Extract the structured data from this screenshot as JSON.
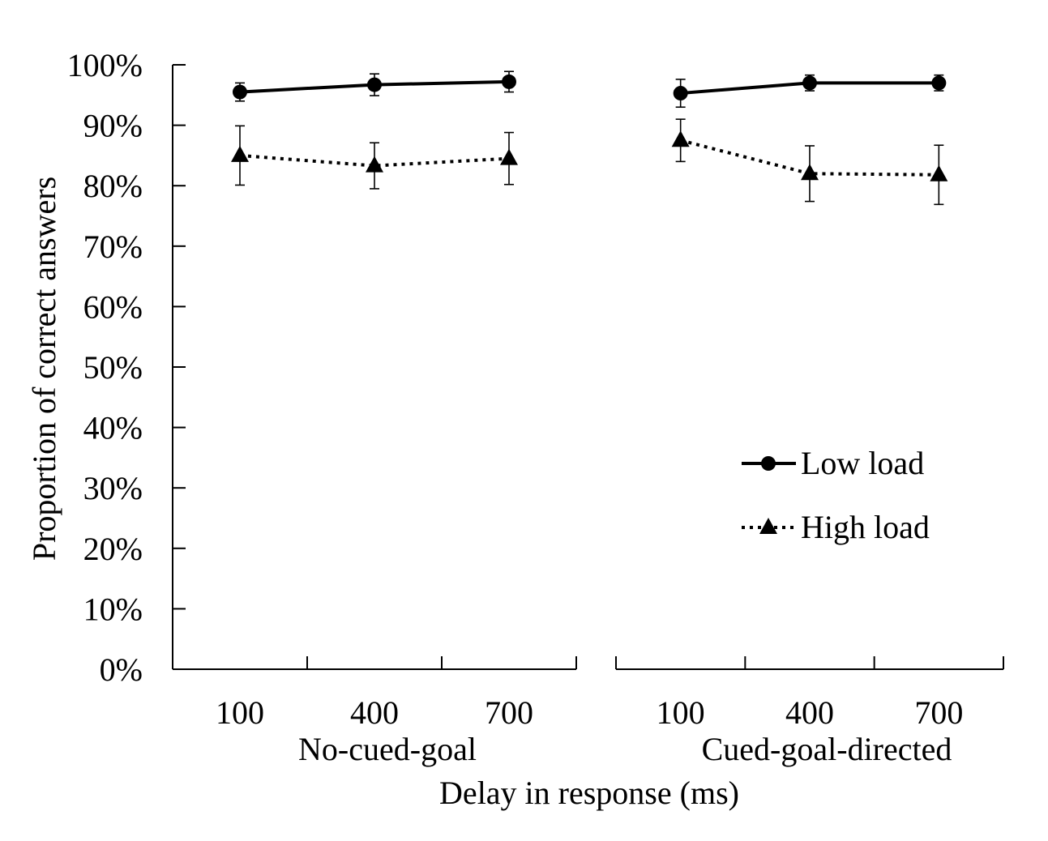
{
  "chart_data": {
    "type": "line",
    "ylabel": "Proportion of correct answers",
    "xlabel": "Delay in response (ms)",
    "ylim": [
      0,
      100
    ],
    "y_ticks": [
      "0%",
      "10%",
      "20%",
      "30%",
      "40%",
      "50%",
      "60%",
      "70%",
      "80%",
      "90%",
      "100%"
    ],
    "y_tick_values": [
      0,
      10,
      20,
      30,
      40,
      50,
      60,
      70,
      80,
      90,
      100
    ],
    "legend_position": "right",
    "panels": [
      {
        "group_label": "No-cued-goal",
        "categories": [
          "100",
          "400",
          "700"
        ],
        "series": [
          {
            "name": "Low load",
            "values": [
              95.5,
              96.7,
              97.2
            ],
            "errors": [
              1.5,
              1.8,
              1.7
            ]
          },
          {
            "name": "High load",
            "values": [
              85.0,
              83.3,
              84.5
            ],
            "errors": [
              4.9,
              3.8,
              4.3
            ]
          }
        ]
      },
      {
        "group_label": "Cued-goal-directed",
        "categories": [
          "100",
          "400",
          "700"
        ],
        "series": [
          {
            "name": "Low load",
            "values": [
              95.3,
              97.0,
              97.0
            ],
            "errors": [
              2.3,
              1.3,
              1.3
            ]
          },
          {
            "name": "High load",
            "values": [
              87.5,
              82.0,
              81.8
            ],
            "errors": [
              3.5,
              4.6,
              4.9
            ]
          }
        ]
      }
    ],
    "legend": [
      {
        "name": "Low load",
        "marker": "circle",
        "line": "solid"
      },
      {
        "name": "High load",
        "marker": "triangle",
        "line": "dotted"
      }
    ],
    "colors": {
      "series": "#000000",
      "axis": "#000000",
      "background": "#ffffff"
    }
  }
}
